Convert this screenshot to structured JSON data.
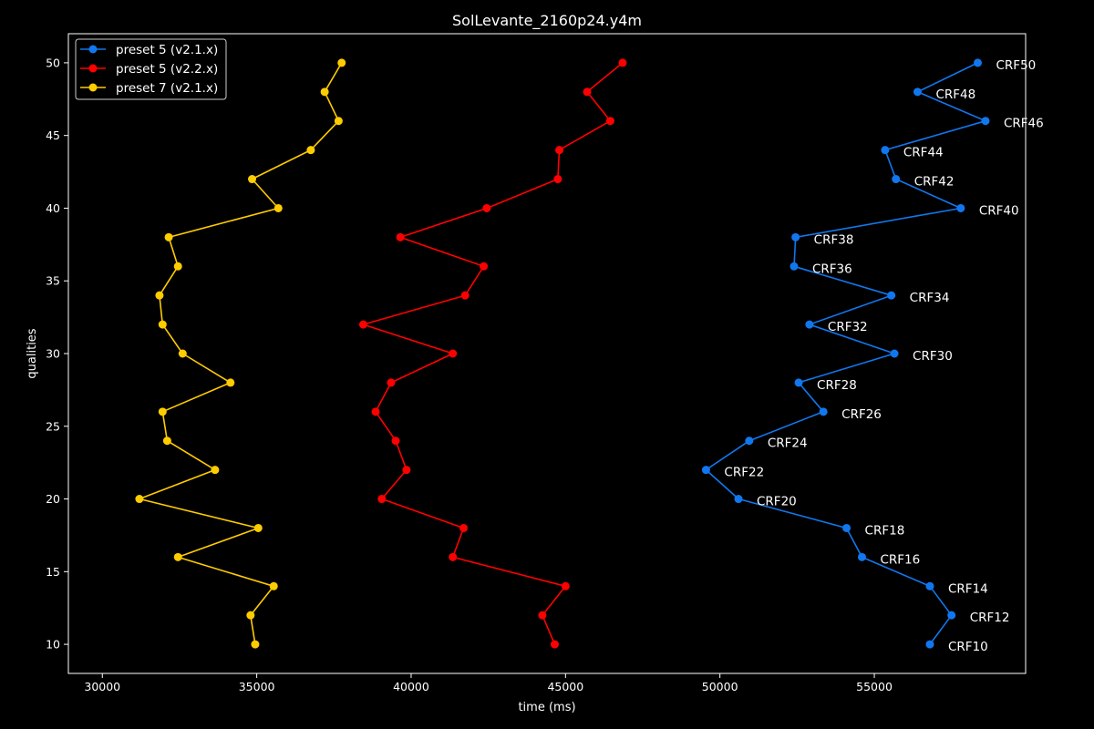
{
  "chart_data": {
    "type": "line",
    "title": "SolLevante_2160p24.y4m",
    "xlabel": "time (ms)",
    "ylabel": "qualities",
    "xlim": [
      28900,
      59900
    ],
    "ylim": [
      8,
      52
    ],
    "xticks": [
      30000,
      35000,
      40000,
      45000,
      50000,
      55000
    ],
    "yticks": [
      10,
      15,
      20,
      25,
      30,
      35,
      40,
      45,
      50
    ],
    "x_tick_labels": [
      "30000",
      "35000",
      "40000",
      "45000",
      "50000",
      "55000"
    ],
    "y_tick_labels": [
      "10",
      "15",
      "20",
      "25",
      "30",
      "35",
      "40",
      "45",
      "50"
    ],
    "grid": false,
    "legend_position": "top-left",
    "y": [
      10,
      12,
      14,
      16,
      18,
      20,
      22,
      24,
      26,
      28,
      30,
      32,
      34,
      36,
      38,
      40,
      42,
      44,
      46,
      48,
      50
    ],
    "series": [
      {
        "name": "preset 5 (v2.1.x)",
        "color": "#1177ee",
        "x": [
          56800,
          57500,
          56800,
          54600,
          54100,
          50600,
          49550,
          50950,
          53350,
          52550,
          55650,
          52900,
          55550,
          52400,
          52450,
          57800,
          55700,
          55350,
          58600,
          56400,
          58350
        ],
        "annotations": [
          "CRF10",
          "CRF12",
          "CRF14",
          "CRF16",
          "CRF18",
          "CRF20",
          "CRF22",
          "CRF24",
          "CRF26",
          "CRF28",
          "CRF30",
          "CRF32",
          "CRF34",
          "CRF36",
          "CRF38",
          "CRF40",
          "CRF42",
          "CRF44",
          "CRF46",
          "CRF48",
          "CRF50"
        ]
      },
      {
        "name": "preset 5 (v2.2.x)",
        "color": "#ff0000",
        "x": [
          44650,
          44250,
          45000,
          41350,
          41700,
          39050,
          39850,
          39500,
          38850,
          39350,
          41350,
          38450,
          41750,
          42350,
          39650,
          42450,
          44750,
          44800,
          46450,
          45700,
          46850
        ],
        "annotations": []
      },
      {
        "name": "preset 7 (v2.1.x)",
        "color": "#ffcc00",
        "x": [
          34950,
          34800,
          35550,
          32450,
          35050,
          31200,
          33650,
          32100,
          31950,
          34150,
          32600,
          31950,
          31850,
          32450,
          32150,
          35700,
          34850,
          36750,
          37650,
          37200,
          37750
        ],
        "annotations": []
      }
    ]
  }
}
